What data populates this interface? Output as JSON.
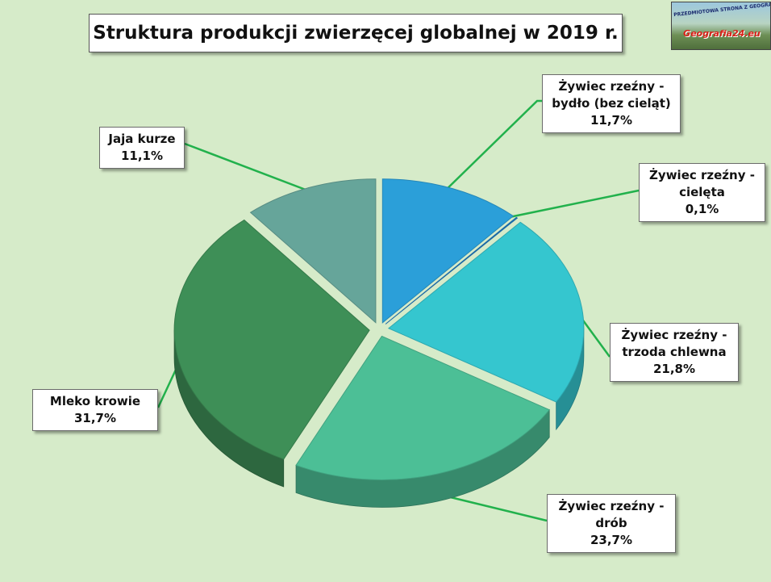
{
  "title": "Struktura produkcji zwierzęcej globalnej w 2019 r.",
  "logo": {
    "top_text": "PRZEDMIOTOWA STRONA Z GEOGRAFII",
    "main_text": "Geografia24.eu"
  },
  "colors": {
    "background": "#d6ebc9",
    "leader_line": "#22b14c"
  },
  "chart_data": {
    "type": "pie",
    "title": "Struktura produkcji zwierzęcej globalnej w 2019 r.",
    "unit": "%",
    "three_d": true,
    "slices": [
      {
        "id": "bydlo",
        "label_lines": [
          "Żywiec rzeźny -",
          "bydło (bez cieląt)"
        ],
        "value_text": "11,7%",
        "value": 11.7,
        "color": "#2b9fd9"
      },
      {
        "id": "cieleta",
        "label_lines": [
          "Żywiec rzeźny -",
          "cielęta"
        ],
        "value_text": "0,1%",
        "value": 0.1,
        "color": "#1f7cc2"
      },
      {
        "id": "trzoda",
        "label_lines": [
          "Żywiec rzeźny -",
          "trzoda chlewna"
        ],
        "value_text": "21,8%",
        "value": 21.8,
        "color": "#35c6cf"
      },
      {
        "id": "drob",
        "label_lines": [
          "Żywiec rzeźny -",
          "drób"
        ],
        "value_text": "23,7%",
        "value": 23.7,
        "color": "#4cbf96"
      },
      {
        "id": "mleko",
        "label_lines": [
          "Mleko krowie"
        ],
        "value_text": "31,7%",
        "value": 31.7,
        "color": "#3e8f57"
      },
      {
        "id": "jaja",
        "label_lines": [
          "Jaja kurze"
        ],
        "value_text": "11,1%",
        "value": 11.1,
        "color": "#66a59a"
      }
    ]
  }
}
